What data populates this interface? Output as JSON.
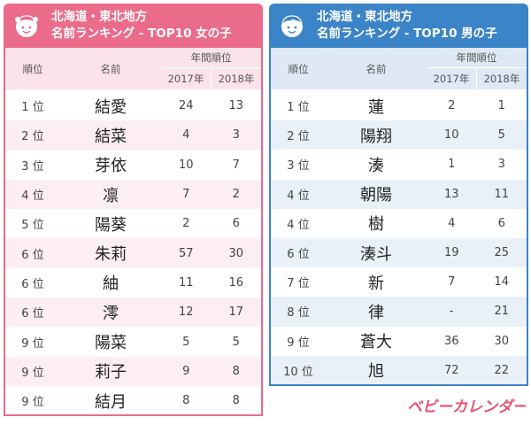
{
  "girls": {
    "title_line1": "北海道・東北地方",
    "title_line2": "名前ランキング - TOP10 女の子",
    "headers": {
      "rank": "順位",
      "name": "名前",
      "years": "年間順位",
      "y2017": "2017年",
      "y2018": "2018年"
    },
    "rows": [
      {
        "rank": "1 位",
        "name": "結愛",
        "y2017": "24",
        "y2018": "13"
      },
      {
        "rank": "2 位",
        "name": "結菜",
        "y2017": "4",
        "y2018": "3"
      },
      {
        "rank": "3 位",
        "name": "芽依",
        "y2017": "10",
        "y2018": "7"
      },
      {
        "rank": "4 位",
        "name": "凛",
        "y2017": "7",
        "y2018": "2"
      },
      {
        "rank": "5 位",
        "name": "陽葵",
        "y2017": "2",
        "y2018": "6"
      },
      {
        "rank": "6 位",
        "name": "朱莉",
        "y2017": "57",
        "y2018": "30"
      },
      {
        "rank": "6 位",
        "name": "紬",
        "y2017": "11",
        "y2018": "16"
      },
      {
        "rank": "6 位",
        "name": "澪",
        "y2017": "12",
        "y2018": "17"
      },
      {
        "rank": "9 位",
        "name": "陽菜",
        "y2017": "5",
        "y2018": "5"
      },
      {
        "rank": "9 位",
        "name": "莉子",
        "y2017": "9",
        "y2018": "8"
      },
      {
        "rank": "9 位",
        "name": "結月",
        "y2017": "8",
        "y2018": "8"
      }
    ]
  },
  "boys": {
    "title_line1": "北海道・東北地方",
    "title_line2": "名前ランキング - TOP10 男の子",
    "headers": {
      "rank": "順位",
      "name": "名前",
      "years": "年間順位",
      "y2017": "2017年",
      "y2018": "2018年"
    },
    "rows": [
      {
        "rank": "1 位",
        "name": "蓮",
        "y2017": "2",
        "y2018": "1"
      },
      {
        "rank": "2 位",
        "name": "陽翔",
        "y2017": "10",
        "y2018": "5"
      },
      {
        "rank": "3 位",
        "name": "湊",
        "y2017": "1",
        "y2018": "3"
      },
      {
        "rank": "4 位",
        "name": "朝陽",
        "y2017": "13",
        "y2018": "11"
      },
      {
        "rank": "4 位",
        "name": "樹",
        "y2017": "4",
        "y2018": "6"
      },
      {
        "rank": "6 位",
        "name": "湊斗",
        "y2017": "19",
        "y2018": "25"
      },
      {
        "rank": "7 位",
        "name": "新",
        "y2017": "7",
        "y2018": "14"
      },
      {
        "rank": "8 位",
        "name": "律",
        "y2017": "-",
        "y2018": "21"
      },
      {
        "rank": "9 位",
        "name": "蒼大",
        "y2017": "36",
        "y2018": "30"
      },
      {
        "rank": "10 位",
        "name": "旭",
        "y2017": "72",
        "y2018": "22"
      }
    ]
  },
  "logo": {
    "text": "ベビーカレンダー"
  },
  "colors": {
    "girls_accent": "#ea6b8a",
    "boys_accent": "#3b84c8",
    "logo": "#e9506f"
  }
}
